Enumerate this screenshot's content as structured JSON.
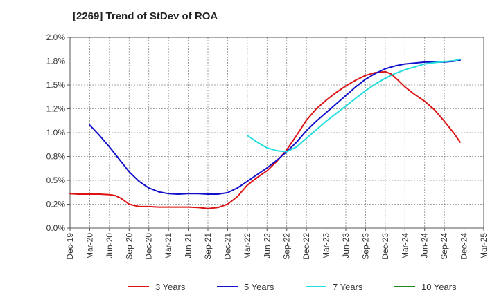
{
  "chart_data": {
    "type": "line",
    "title": "[2269]  Trend of StDev of ROA",
    "xlabel": "",
    "ylabel": "",
    "ylim": [
      0,
      2.0
    ],
    "yticks": [
      0.0,
      0.25,
      0.5,
      0.75,
      1.0,
      1.25,
      1.5,
      1.75,
      2.0
    ],
    "yticklabels": [
      "0.0%",
      "0.2%",
      "0.5%",
      "0.8%",
      "1.0%",
      "1.2%",
      "1.5%",
      "1.8%",
      "2.0%"
    ],
    "categories": [
      "Dec-19",
      "Mar-20",
      "Jun-20",
      "Sep-20",
      "Dec-20",
      "Mar-21",
      "Jun-21",
      "Sep-21",
      "Dec-21",
      "Mar-22",
      "Jun-22",
      "Sep-22",
      "Dec-22",
      "Mar-23",
      "Jun-23",
      "Sep-23",
      "Dec-23",
      "Mar-24",
      "Jun-24",
      "Sep-24",
      "Dec-24",
      "Mar-25"
    ],
    "grid": true,
    "legend_position": "bottom",
    "series": [
      {
        "name": "3 Years",
        "color": "#dd1111",
        "points": [
          [
            0,
            0.36
          ],
          [
            0.4,
            0.355
          ],
          [
            1,
            0.355
          ],
          [
            1.5,
            0.355
          ],
          [
            2,
            0.35
          ],
          [
            2.3,
            0.34
          ],
          [
            2.6,
            0.31
          ],
          [
            3,
            0.25
          ],
          [
            3.5,
            0.225
          ],
          [
            4,
            0.225
          ],
          [
            4.5,
            0.22
          ],
          [
            5,
            0.22
          ],
          [
            5.5,
            0.22
          ],
          [
            6,
            0.22
          ],
          [
            6.5,
            0.215
          ],
          [
            7,
            0.205
          ],
          [
            7.5,
            0.215
          ],
          [
            8,
            0.25
          ],
          [
            8.5,
            0.33
          ],
          [
            9,
            0.45
          ],
          [
            9.5,
            0.53
          ],
          [
            10,
            0.6
          ],
          [
            10.5,
            0.7
          ],
          [
            11,
            0.82
          ],
          [
            11.5,
            0.97
          ],
          [
            12,
            1.13
          ],
          [
            12.5,
            1.25
          ],
          [
            13,
            1.34
          ],
          [
            13.5,
            1.42
          ],
          [
            14,
            1.49
          ],
          [
            14.5,
            1.55
          ],
          [
            15,
            1.6
          ],
          [
            15.5,
            1.63
          ],
          [
            16,
            1.64
          ],
          [
            16.3,
            1.615
          ],
          [
            16.6,
            1.56
          ],
          [
            17,
            1.48
          ],
          [
            17.5,
            1.4
          ],
          [
            18,
            1.33
          ],
          [
            18.5,
            1.24
          ],
          [
            19,
            1.12
          ],
          [
            19.5,
            0.99
          ],
          [
            19.8,
            0.9
          ]
        ]
      },
      {
        "name": "5 Years",
        "color": "#1111cc",
        "points": [
          [
            1,
            1.08
          ],
          [
            1.5,
            0.97
          ],
          [
            2,
            0.85
          ],
          [
            2.5,
            0.72
          ],
          [
            3,
            0.59
          ],
          [
            3.5,
            0.49
          ],
          [
            4,
            0.42
          ],
          [
            4.5,
            0.38
          ],
          [
            5,
            0.36
          ],
          [
            5.5,
            0.355
          ],
          [
            6,
            0.36
          ],
          [
            6.5,
            0.36
          ],
          [
            7,
            0.355
          ],
          [
            7.5,
            0.355
          ],
          [
            8,
            0.37
          ],
          [
            8.5,
            0.42
          ],
          [
            9,
            0.49
          ],
          [
            9.5,
            0.56
          ],
          [
            10,
            0.63
          ],
          [
            10.5,
            0.71
          ],
          [
            11,
            0.8
          ],
          [
            11.5,
            0.9
          ],
          [
            12,
            1.02
          ],
          [
            12.5,
            1.12
          ],
          [
            13,
            1.21
          ],
          [
            13.5,
            1.3
          ],
          [
            14,
            1.39
          ],
          [
            14.5,
            1.48
          ],
          [
            15,
            1.56
          ],
          [
            15.5,
            1.62
          ],
          [
            16,
            1.67
          ],
          [
            16.5,
            1.7
          ],
          [
            17,
            1.72
          ],
          [
            17.5,
            1.73
          ],
          [
            18,
            1.74
          ],
          [
            18.5,
            1.74
          ],
          [
            19,
            1.74
          ],
          [
            19.5,
            1.75
          ],
          [
            19.8,
            1.76
          ]
        ]
      },
      {
        "name": "7 Years",
        "color": "#22dddd",
        "points": [
          [
            9,
            0.97
          ],
          [
            9.5,
            0.9
          ],
          [
            10,
            0.84
          ],
          [
            10.5,
            0.81
          ],
          [
            11,
            0.8
          ],
          [
            11.5,
            0.85
          ],
          [
            12,
            0.94
          ],
          [
            12.5,
            1.03
          ],
          [
            13,
            1.12
          ],
          [
            13.5,
            1.2
          ],
          [
            14,
            1.28
          ],
          [
            14.5,
            1.36
          ],
          [
            15,
            1.44
          ],
          [
            15.5,
            1.51
          ],
          [
            16,
            1.57
          ],
          [
            16.5,
            1.62
          ],
          [
            17,
            1.66
          ],
          [
            17.5,
            1.69
          ],
          [
            18,
            1.72
          ],
          [
            18.5,
            1.735
          ],
          [
            19,
            1.745
          ],
          [
            19.5,
            1.755
          ],
          [
            19.8,
            1.77
          ]
        ]
      },
      {
        "name": "10 Years",
        "color": "#228822",
        "points": []
      }
    ]
  }
}
